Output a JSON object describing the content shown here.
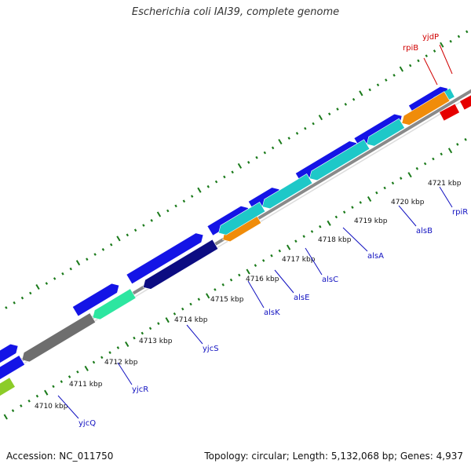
{
  "title": "Escherichia coli IAI39, complete genome",
  "footer": {
    "accession": "Accession: NC_011750",
    "summary": "Topology: circular; Length: 5,132,068 bp; Genes: 4,937"
  },
  "colors": {
    "backbone": "#8a8a8a",
    "tick": "#1a7a1a",
    "gene_blue": "#1414e6",
    "gene_cyan": "#1ec8c8",
    "gene_navy": "#0c0c82",
    "gene_orange": "#f08c0a",
    "gene_gray": "#6e6e6e",
    "gene_teal": "#2de6a0",
    "gene_lime": "#8ccc28",
    "gene_red": "#e60000",
    "label_blue": "#1010c0",
    "label_red": "#d00000"
  },
  "kbp_labels": [
    "4710 kbp",
    "4711 kbp",
    "4712 kbp",
    "4713 kbp",
    "4714 kbp",
    "4715 kbp",
    "4716 kbp",
    "4717 kbp",
    "4718 kbp",
    "4719 kbp",
    "4720 kbp",
    "4721 kbp"
  ],
  "gene_labels": {
    "yjcQ": "yjcQ",
    "yjcR": "yjcR",
    "yjcS": "yjcS",
    "alsK": "alsK",
    "alsE": "alsE",
    "alsC": "alsC",
    "alsA": "alsA",
    "alsB": "alsB",
    "rpiR": "rpiR",
    "rpiB": "rpiB",
    "yjdP": "yjdP"
  }
}
